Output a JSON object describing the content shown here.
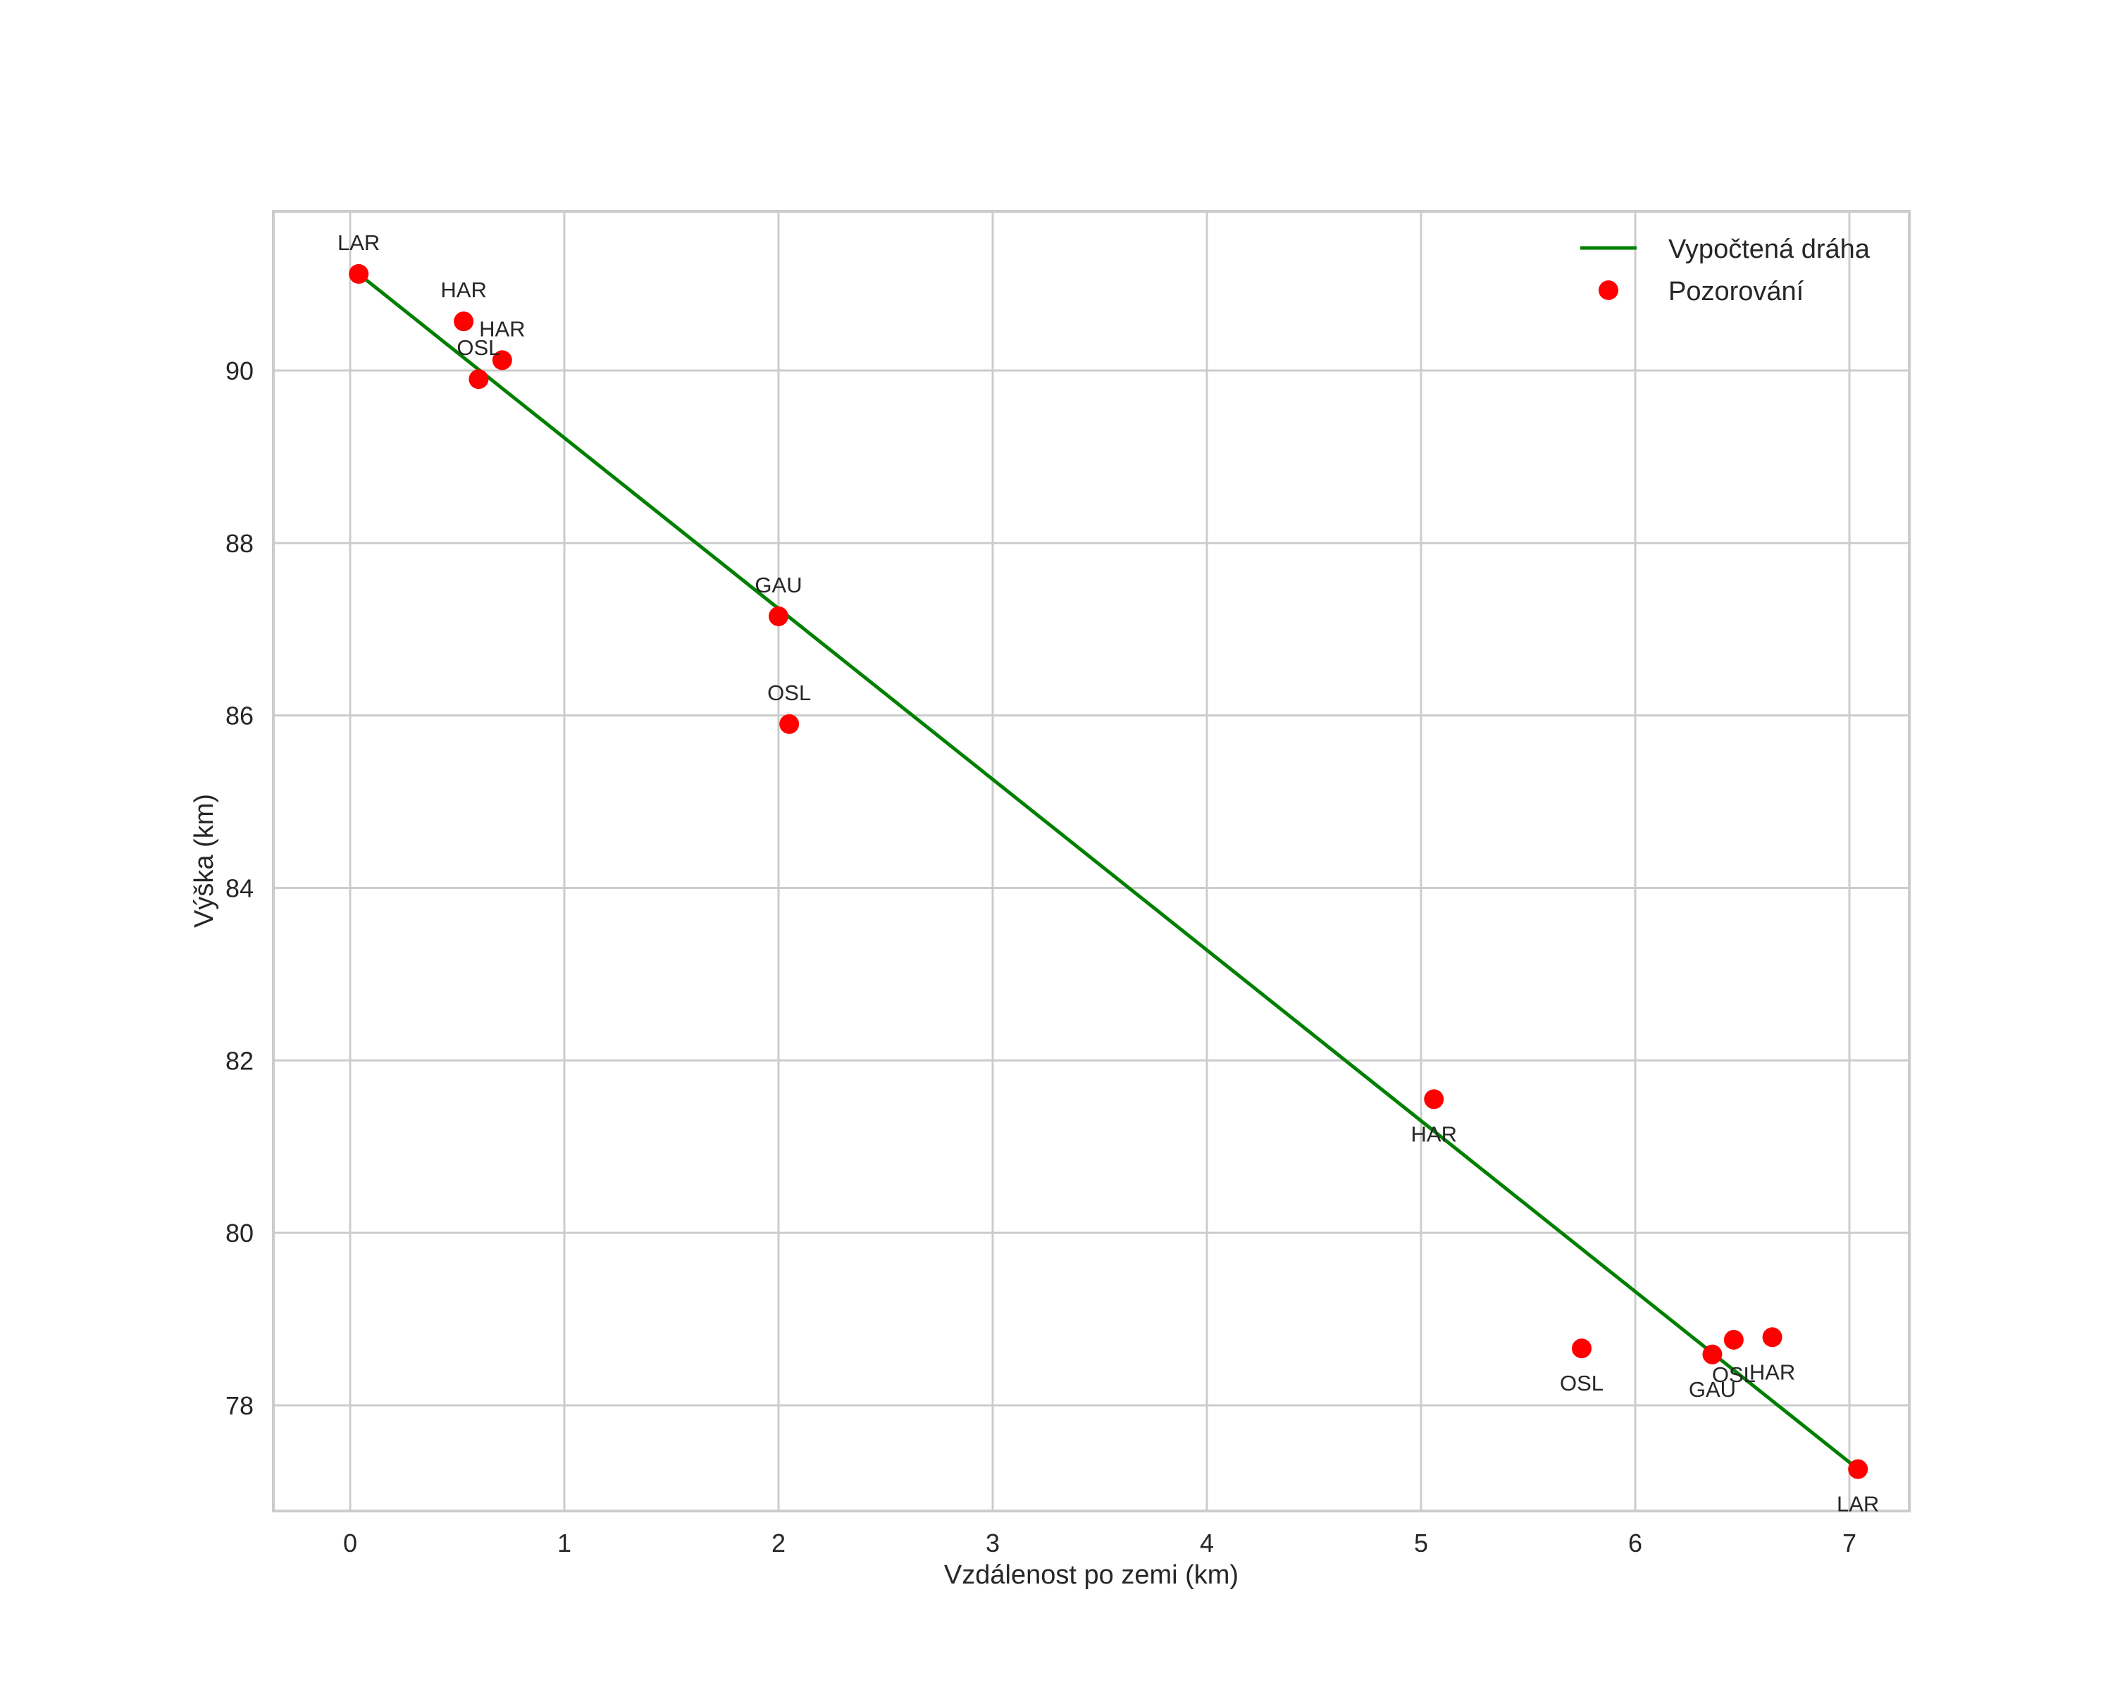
{
  "chart_data": {
    "type": "scatter",
    "title": "",
    "xlabel": "Vzdálenost po zemi (km)",
    "ylabel": "Výška (km)",
    "xlim": [
      -0.35,
      7.4
    ],
    "ylim": [
      76.8,
      91.7
    ],
    "xticks": [
      0,
      1,
      2,
      3,
      4,
      5,
      6,
      7
    ],
    "yticks": [
      78,
      80,
      82,
      84,
      86,
      88,
      90
    ],
    "grid": true,
    "legend_position": "upper right",
    "colors": {
      "line": "#008000",
      "points": "#ff0000",
      "grid": "#cccccc",
      "text": "#262626"
    },
    "series": [
      {
        "name": "Vypočtená dráha",
        "type": "line",
        "color": "#008000",
        "x": [
          0.04,
          7.04
        ],
        "y": [
          91.12,
          77.26
        ]
      },
      {
        "name": "Pozorování",
        "type": "scatter",
        "color": "#ff0000",
        "points": [
          {
            "x": 0.04,
            "y": 91.12,
            "label": "LAR",
            "label_pos": "above"
          },
          {
            "x": 0.53,
            "y": 90.57,
            "label": "HAR",
            "label_pos": "above"
          },
          {
            "x": 0.71,
            "y": 90.12,
            "label": "HAR",
            "label_pos": "above"
          },
          {
            "x": 0.6,
            "y": 89.9,
            "label": "OSL",
            "label_pos": "above"
          },
          {
            "x": 2.0,
            "y": 87.15,
            "label": "GAU",
            "label_pos": "above"
          },
          {
            "x": 2.05,
            "y": 85.9,
            "label": "OSL",
            "label_pos": "above"
          },
          {
            "x": 5.06,
            "y": 81.55,
            "label": "HAR",
            "label_pos": "below"
          },
          {
            "x": 5.75,
            "y": 78.66,
            "label": "OSL",
            "label_pos": "below"
          },
          {
            "x": 6.36,
            "y": 78.59,
            "label": "GAU",
            "label_pos": "below"
          },
          {
            "x": 6.46,
            "y": 78.76,
            "label": "OSL",
            "label_pos": "below"
          },
          {
            "x": 6.64,
            "y": 78.79,
            "label": "HAR",
            "label_pos": "below"
          },
          {
            "x": 7.04,
            "y": 77.26,
            "label": "LAR",
            "label_pos": "below"
          }
        ]
      }
    ],
    "legend": [
      {
        "label": "Vypočtená dráha",
        "marker": "line",
        "color": "#008000"
      },
      {
        "label": "Pozorování",
        "marker": "circle",
        "color": "#ff0000"
      }
    ]
  }
}
